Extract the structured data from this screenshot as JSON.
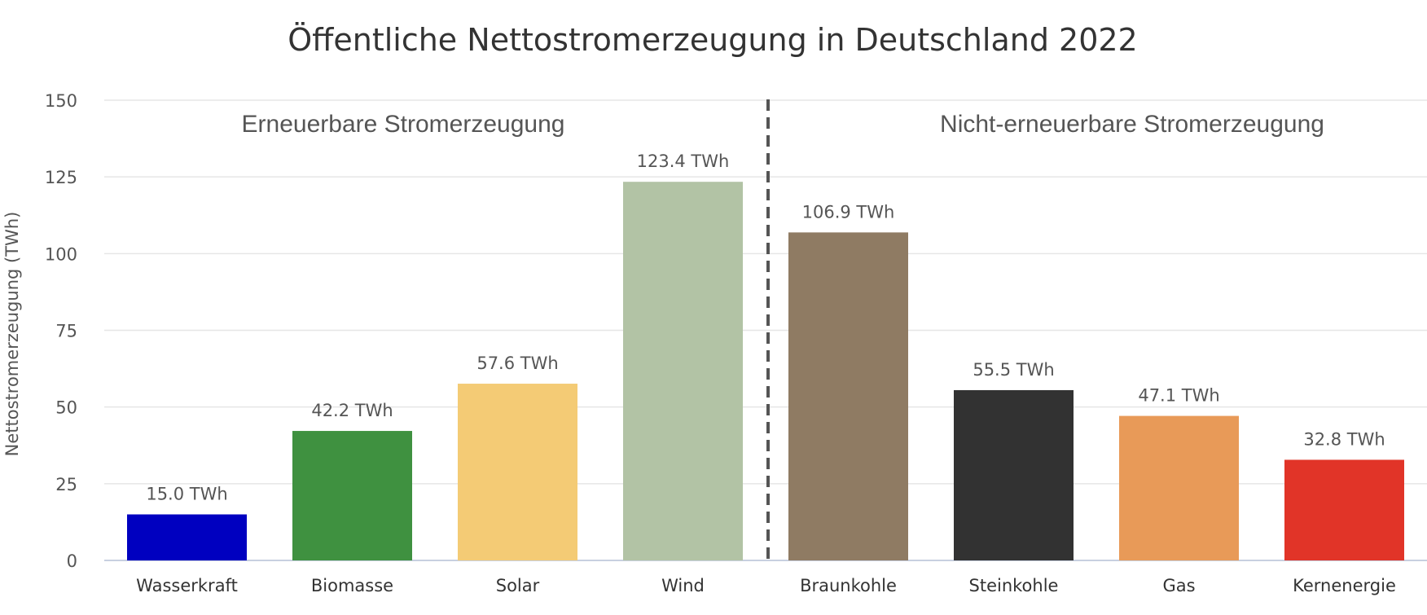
{
  "chart_data": {
    "type": "bar",
    "title": "Öffentliche Nettostromerzeugung in Deutschland 2022",
    "ylabel": "Nettostromerzeugung (TWh)",
    "xlabel": "",
    "ylim": [
      0,
      150
    ],
    "yticks": [
      "0",
      "25",
      "50",
      "75",
      "100",
      "125",
      "150"
    ],
    "grid": true,
    "legend": "none",
    "categories": [
      "Wasserkraft",
      "Biomasse",
      "Solar",
      "Wind",
      "Braunkohle",
      "Steinkohle",
      "Gas",
      "Kernenergie"
    ],
    "values": [
      15.0,
      42.2,
      57.6,
      123.4,
      106.9,
      55.5,
      47.1,
      32.8
    ],
    "data_labels": [
      "15.0 TWh",
      "42.2 TWh",
      "57.6 TWh",
      "123.4 TWh",
      "106.9 TWh",
      "55.5 TWh",
      "47.1 TWh",
      "32.8 TWh"
    ],
    "colors": [
      "#0000c0",
      "#3f9140",
      "#f4cb75",
      "#b2c3a5",
      "#8f7b63",
      "#323232",
      "#e89a58",
      "#e13428"
    ],
    "groups": [
      {
        "label": "Erneuerbare Stromerzeugung",
        "categories": [
          "Wasserkraft",
          "Biomasse",
          "Solar",
          "Wind"
        ]
      },
      {
        "label": "Nicht-erneuerbare Stromerzeugung",
        "categories": [
          "Braunkohle",
          "Steinkohle",
          "Gas",
          "Kernenergie"
        ]
      }
    ],
    "separator": {
      "after_category": "Wind",
      "style": "dashed",
      "color": "#555555"
    }
  }
}
